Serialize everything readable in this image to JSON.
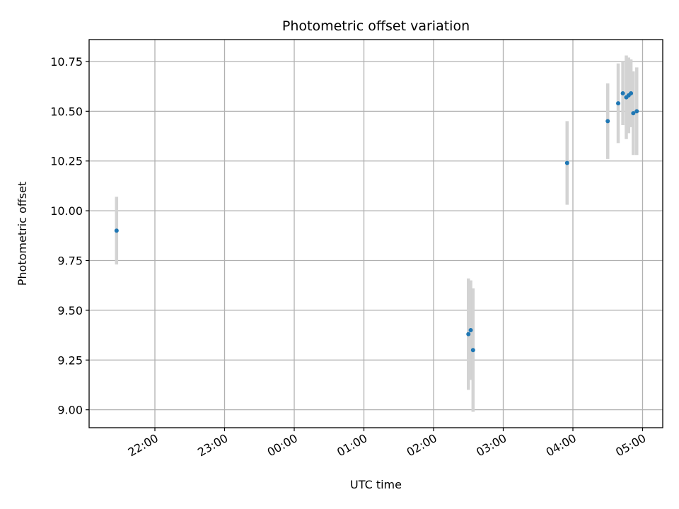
{
  "chart_data": {
    "type": "scatter",
    "title": "Photometric offset variation",
    "xlabel": "UTC time",
    "ylabel": "Photometric offset",
    "x_ticks": [
      "22:00",
      "23:00",
      "00:00",
      "01:00",
      "02:00",
      "03:00",
      "04:00",
      "05:00"
    ],
    "y_ticks": [
      "9.00",
      "9.25",
      "9.50",
      "9.75",
      "10.00",
      "10.25",
      "10.50",
      "10.75"
    ],
    "ylim": [
      8.91,
      10.86
    ],
    "grid": true,
    "legend": "none",
    "colors": {
      "point": "#1f77b4",
      "errorbar": "#d3d3d3",
      "grid": "#b0b0b0"
    },
    "points": [
      {
        "x": "21:27",
        "y": 9.9,
        "yerr": 0.17
      },
      {
        "x": "02:30",
        "y": 9.38,
        "yerr": 0.28
      },
      {
        "x": "02:32",
        "y": 9.4,
        "yerr": 0.25
      },
      {
        "x": "02:34",
        "y": 9.3,
        "yerr": 0.31
      },
      {
        "x": "03:55",
        "y": 10.24,
        "yerr": 0.21
      },
      {
        "x": "04:30",
        "y": 10.45,
        "yerr": 0.19
      },
      {
        "x": "04:39",
        "y": 10.54,
        "yerr": 0.2
      },
      {
        "x": "04:43",
        "y": 10.59,
        "yerr": 0.16
      },
      {
        "x": "04:46",
        "y": 10.57,
        "yerr": 0.21
      },
      {
        "x": "04:48",
        "y": 10.58,
        "yerr": 0.19
      },
      {
        "x": "04:50",
        "y": 10.59,
        "yerr": 0.17
      },
      {
        "x": "04:52",
        "y": 10.49,
        "yerr": 0.21
      },
      {
        "x": "04:55",
        "y": 10.5,
        "yerr": 0.22
      }
    ]
  }
}
